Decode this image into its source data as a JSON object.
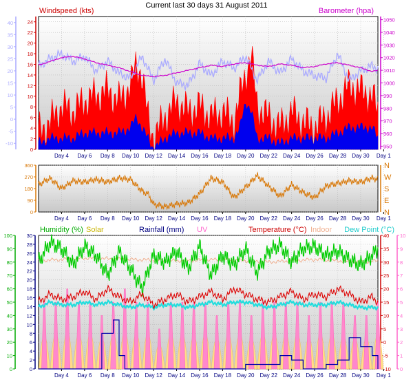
{
  "chart_data": [
    {
      "panel": "wind-baro",
      "type": "line",
      "title": "Current last 30 days 31 August 2011",
      "x_ticks": [
        "Day 4",
        "Day 6",
        "Day 8",
        "Day 10",
        "Day 12",
        "Day 14",
        "Day 16",
        "Day 18",
        "Day 20",
        "Day 22",
        "Day 24",
        "Day 26",
        "Day 28",
        "Day 30",
        "Day 1"
      ],
      "x_range_days": [
        2,
        31.5
      ],
      "left_axis": {
        "label": "Windspeed (kts)",
        "ticks": [
          0,
          2,
          4,
          6,
          8,
          10,
          12,
          14,
          16,
          18,
          20,
          22,
          24
        ],
        "ylim": [
          0,
          25
        ],
        "color": "#cc0000"
      },
      "outer_left_axis": {
        "ticks": [
          -10,
          -5,
          0,
          5,
          10,
          15,
          20,
          25,
          30,
          35,
          40
        ],
        "ylim": [
          -12.5,
          42.5
        ],
        "color": "#aaaaff"
      },
      "right_axis": {
        "label": "Barometer (hpa)",
        "ticks": [
          950,
          960,
          970,
          980,
          990,
          1000,
          1010,
          1020,
          1030,
          1040,
          1050
        ],
        "ylim": [
          947.5,
          1052.5
        ],
        "color": "#cc00cc"
      },
      "series": [
        {
          "name": "Windspeed (kts)",
          "color": "#ff0000",
          "x": [
            2,
            3,
            4,
            5,
            6,
            7,
            8,
            9,
            10,
            10.5,
            11,
            11.5,
            12,
            13,
            14,
            15,
            16,
            17,
            18,
            19,
            19.5,
            20,
            20.5,
            21,
            22,
            23,
            24,
            25,
            26,
            27,
            28,
            29,
            30,
            31,
            31.5
          ],
          "values": [
            3,
            5,
            8,
            7,
            9,
            10,
            11,
            9,
            12,
            16,
            14,
            6,
            2,
            6,
            9,
            7,
            8,
            6,
            7,
            5,
            10,
            14,
            18,
            8,
            6,
            4,
            7,
            5,
            4,
            6,
            9,
            12,
            11,
            10,
            7
          ]
        },
        {
          "x": [
            2,
            3,
            4,
            5,
            6,
            7,
            8,
            9,
            10,
            10.5,
            11,
            11.5,
            12,
            13,
            14,
            15,
            16,
            17,
            18,
            19,
            19.5,
            20,
            20.5,
            21,
            22,
            23,
            24,
            25,
            26,
            27,
            28,
            29,
            30,
            31,
            31.5
          ],
          "values": [
            1,
            2,
            2,
            2,
            3,
            3,
            3,
            3,
            4,
            6,
            4,
            2,
            0,
            2,
            3,
            3,
            3,
            2,
            2,
            2,
            4,
            9,
            7,
            2,
            2,
            1,
            2,
            2,
            2,
            2,
            3,
            4,
            4,
            4,
            2
          ]
        },
        {
          "name": "Barometer (hpa)",
          "color": "#cc00cc",
          "x": [
            2,
            3,
            4,
            5,
            6,
            7,
            8,
            9,
            10,
            11,
            12,
            13,
            14,
            15,
            16,
            17,
            18,
            19,
            20,
            21,
            22,
            23,
            24,
            25,
            26,
            27,
            28,
            29,
            30,
            31,
            31.5
          ],
          "values": [
            1014,
            1017,
            1020,
            1021,
            1019,
            1016,
            1014,
            1012,
            1009,
            1006,
            1005,
            1006,
            1008,
            1010,
            1012,
            1014,
            1013,
            1015,
            1016,
            1014,
            1013,
            1015,
            1014,
            1012,
            1013,
            1015,
            1016,
            1014,
            1012,
            1009,
            1010
          ]
        },
        {
          "color": "#aaaaff",
          "x": [
            2,
            3,
            4,
            5,
            6,
            7,
            8,
            9,
            10,
            11,
            12,
            13,
            14,
            15,
            16,
            17,
            18,
            19,
            20,
            21,
            22,
            23,
            24,
            25,
            26,
            27,
            28,
            29,
            30,
            31,
            31.5
          ],
          "values": [
            22,
            25,
            27,
            24,
            26,
            20,
            24,
            19,
            17,
            26,
            16,
            25,
            15,
            14,
            23,
            18,
            24,
            21,
            26,
            16,
            24,
            19,
            25,
            20,
            18,
            17,
            27,
            16,
            20,
            22,
            21
          ]
        }
      ]
    },
    {
      "panel": "wind-direction",
      "type": "line",
      "y_ticks": [
        0,
        90,
        180,
        270,
        360
      ],
      "ylim": [
        0,
        360
      ],
      "right_labels": [
        "N",
        "W",
        "S",
        "E",
        "N"
      ],
      "series": [
        {
          "color": "#d87808",
          "x": [
            2,
            3,
            4,
            5,
            6,
            7,
            8,
            9,
            10,
            11,
            11.5,
            12,
            13,
            14,
            15,
            16,
            17,
            18,
            19,
            20,
            21,
            22,
            23,
            24,
            25,
            26,
            27,
            28,
            29,
            30,
            31,
            31.5
          ],
          "values": [
            210,
            260,
            180,
            240,
            230,
            250,
            230,
            260,
            250,
            160,
            140,
            60,
            40,
            60,
            70,
            140,
            260,
            230,
            110,
            190,
            280,
            200,
            120,
            210,
            150,
            110,
            200,
            220,
            240,
            230,
            260,
            250
          ]
        }
      ]
    },
    {
      "panel": "weather",
      "type": "line",
      "axes": [
        {
          "label": "Humidity (%)",
          "side": "left-outer",
          "ticks": [
            0,
            10,
            20,
            30,
            40,
            50,
            60,
            70,
            80,
            90,
            100
          ],
          "ylim": [
            0,
            100
          ],
          "color": "#00aa00"
        },
        {
          "label": "Rainfall (mm)",
          "side": "left-inner",
          "ticks": [
            0,
            2,
            4,
            6,
            8,
            10,
            12,
            14,
            16,
            18,
            20,
            22,
            24,
            26,
            28,
            30
          ],
          "ylim": [
            0,
            30
          ],
          "color": "#000080"
        },
        {
          "label": "Temperature (°C)",
          "side": "right-inner",
          "ticks": [
            -10,
            -5,
            0,
            5,
            10,
            15,
            20,
            25,
            30,
            35,
            40
          ],
          "ylim": [
            -10,
            40
          ],
          "color": "#cc0000"
        },
        {
          "label": "UV",
          "side": "right-outer",
          "ticks": [
            0,
            1,
            2,
            3,
            4,
            5,
            6,
            7,
            8,
            9,
            10
          ],
          "ylim": [
            0,
            10
          ],
          "color": "#ff66cc"
        }
      ],
      "legend": [
        "Humidity (%)",
        "Solar",
        "Rainfall (mm)",
        "UV",
        "Temperature (°C)",
        "Indoor",
        "Dew Point (°C)"
      ],
      "series": [
        {
          "name": "Humidity (%)",
          "color": "#00cc00",
          "x": [
            2,
            3,
            4,
            5,
            6,
            7,
            8,
            9,
            10,
            11,
            12,
            13,
            14,
            15,
            16,
            17,
            18,
            19,
            20,
            21,
            22,
            23,
            24,
            25,
            26,
            27,
            28,
            29,
            30,
            31,
            31.5
          ],
          "values": [
            80,
            95,
            90,
            78,
            92,
            85,
            70,
            88,
            75,
            60,
            85,
            80,
            88,
            75,
            92,
            70,
            85,
            78,
            90,
            72,
            88,
            93,
            80,
            90,
            92,
            85,
            88,
            82,
            78,
            85,
            90
          ]
        },
        {
          "name": "Indoor",
          "color": "#f0b090",
          "x": [
            2,
            6,
            10,
            14,
            18,
            22,
            26,
            30,
            31.5
          ],
          "values": [
            81,
            83,
            82,
            81,
            82,
            80,
            82,
            80,
            81
          ]
        },
        {
          "name": "Temperature (°C)",
          "color": "#dd0000",
          "x": [
            2,
            3,
            4,
            5,
            6,
            7,
            8,
            9,
            10,
            11,
            12,
            13,
            14,
            15,
            16,
            17,
            18,
            19,
            20,
            21,
            22,
            23,
            24,
            25,
            26,
            27,
            28,
            29,
            30,
            31,
            31.5
          ],
          "values": [
            15,
            18,
            16,
            17,
            19,
            16,
            20,
            17,
            15,
            18,
            14,
            16,
            18,
            15,
            17,
            19,
            16,
            20,
            18,
            16,
            15,
            17,
            19,
            16,
            18,
            17,
            20,
            18,
            15,
            17,
            15
          ]
        },
        {
          "name": "Dew Point (°C)",
          "color": "#22dddd",
          "x": [
            2,
            3,
            4,
            5,
            6,
            7,
            8,
            9,
            10,
            11,
            12,
            13,
            14,
            15,
            16,
            17,
            18,
            19,
            20,
            21,
            22,
            23,
            24,
            25,
            26,
            27,
            28,
            29,
            30,
            31,
            31.5
          ],
          "values": [
            13,
            15,
            14,
            14,
            15,
            14,
            15,
            14,
            13,
            14,
            13,
            14,
            14,
            13,
            14,
            15,
            14,
            15,
            15,
            14,
            13,
            14,
            15,
            14,
            14,
            14,
            15,
            14,
            13,
            13,
            13
          ]
        },
        {
          "name": "Rainfall (mm)",
          "color": "#0000aa",
          "x": [
            2,
            7,
            7.5,
            8.5,
            9,
            9.5,
            11,
            15,
            19,
            20,
            22,
            23,
            24,
            25,
            26,
            27,
            28,
            29,
            30,
            31,
            31.5
          ],
          "values": [
            0,
            0,
            8,
            11,
            3,
            0,
            0,
            0,
            0,
            1,
            1,
            3,
            2,
            0,
            0,
            1,
            2,
            7,
            5,
            3,
            0
          ]
        },
        {
          "name": "UV",
          "color": "#ff77cc",
          "type": "daily-peaks",
          "days": [
            2,
            3,
            4,
            5,
            6,
            7,
            8,
            9,
            10,
            11,
            12,
            13,
            14,
            15,
            16,
            17,
            18,
            19,
            20,
            21,
            22,
            23,
            24,
            25,
            26,
            27,
            28,
            29,
            30,
            31
          ],
          "values": [
            5,
            5,
            6,
            5,
            5,
            4,
            5,
            6,
            5,
            5,
            3,
            5,
            5,
            5,
            5,
            4,
            5,
            5,
            4,
            5,
            5,
            5,
            5,
            4,
            5,
            5,
            5,
            4,
            4,
            5
          ]
        },
        {
          "name": "Solar",
          "color": "#ffdd88",
          "type": "daily-peaks",
          "days": [
            2,
            3,
            4,
            5,
            6,
            7,
            8,
            9,
            10,
            11,
            12,
            13,
            14,
            15,
            16,
            17,
            18,
            19,
            20,
            21,
            22,
            23,
            24,
            25,
            26,
            27,
            28,
            29,
            30,
            31
          ],
          "values": [
            14,
            15,
            16,
            15,
            15,
            13,
            15,
            16,
            15,
            15,
            10,
            15,
            15,
            14,
            15,
            13,
            15,
            15,
            13,
            15,
            15,
            15,
            15,
            13,
            15,
            15,
            14,
            13,
            13,
            15
          ]
        }
      ]
    }
  ]
}
